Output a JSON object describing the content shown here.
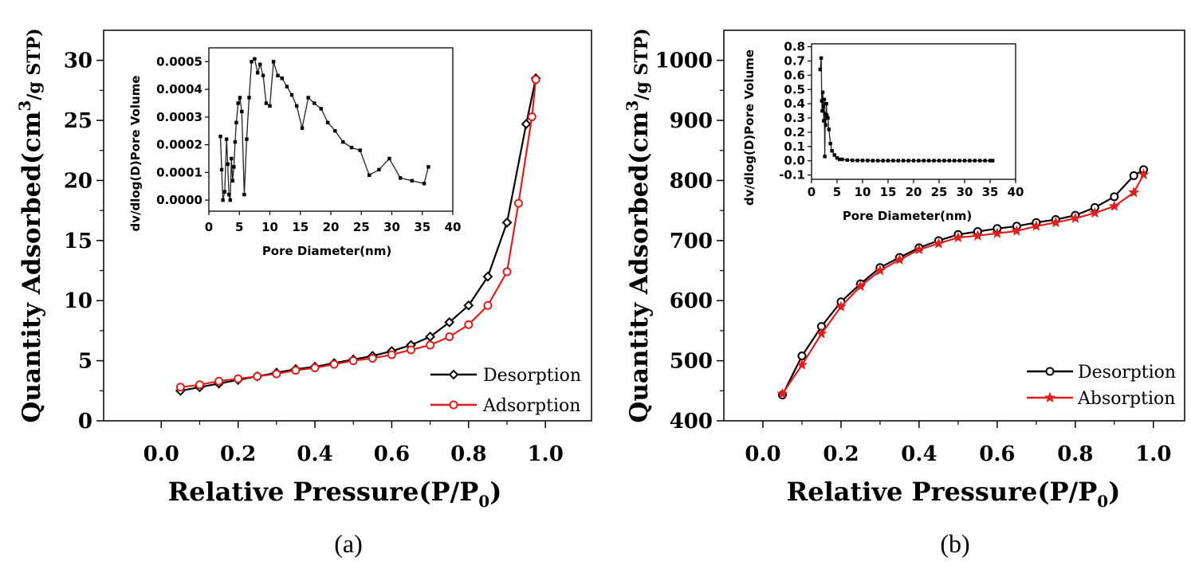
{
  "chart_data": [
    {
      "type": "line",
      "panel_label": "(a)",
      "xlabel": "Relative Pressure(P/P",
      "xlabel_sub": "0",
      "xlabel_close": ")",
      "ylabel": "Quantity Adsorbed(cm",
      "ylabel_sup": "3",
      "ylabel_unit": "/g STP)",
      "xlim": [
        -0.15,
        1.12
      ],
      "ylim": [
        0,
        32.5
      ],
      "xticks": [
        0.0,
        0.2,
        0.4,
        0.6,
        0.8,
        1.0
      ],
      "xtick_labels": [
        "0.0",
        "0.2",
        "0.4",
        "0.6",
        "0.8",
        "1.0"
      ],
      "yticks": [
        0,
        5,
        10,
        15,
        20,
        25,
        30
      ],
      "ytick_labels": [
        "0",
        "5",
        "10",
        "15",
        "20",
        "25",
        "30"
      ],
      "legend_position": "bottom-right",
      "series": [
        {
          "name": "Desorption",
          "color": "#000000",
          "marker": "diamond",
          "x": [
            0.05,
            0.1,
            0.15,
            0.2,
            0.25,
            0.3,
            0.35,
            0.4,
            0.45,
            0.5,
            0.55,
            0.6,
            0.65,
            0.7,
            0.75,
            0.8,
            0.85,
            0.9,
            0.95,
            0.975
          ],
          "y": [
            2.5,
            2.8,
            3.1,
            3.4,
            3.7,
            4.0,
            4.3,
            4.5,
            4.8,
            5.1,
            5.4,
            5.8,
            6.3,
            7.0,
            8.2,
            9.6,
            12.0,
            16.5,
            24.7,
            28.5
          ]
        },
        {
          "name": "Adsorption",
          "color": "#dd1f1f",
          "marker": "circle",
          "x": [
            0.05,
            0.1,
            0.15,
            0.2,
            0.25,
            0.3,
            0.35,
            0.4,
            0.45,
            0.5,
            0.55,
            0.6,
            0.65,
            0.7,
            0.75,
            0.8,
            0.85,
            0.9,
            0.93,
            0.965,
            0.975
          ],
          "y": [
            2.8,
            3.0,
            3.3,
            3.5,
            3.7,
            3.9,
            4.2,
            4.4,
            4.7,
            5.0,
            5.2,
            5.5,
            5.9,
            6.3,
            7.0,
            8.0,
            9.6,
            12.4,
            18.1,
            25.3,
            28.4
          ]
        }
      ],
      "inset": {
        "type": "line",
        "xlabel": "Pore Diameter(nm)",
        "ylabel": "dv/dlog(D)Pore Volume",
        "xlim": [
          0,
          40
        ],
        "ylim": [
          -4e-05,
          0.00055
        ],
        "xticks": [
          0,
          5,
          10,
          15,
          20,
          25,
          30,
          35,
          40
        ],
        "xtick_labels": [
          "0",
          "5",
          "10",
          "15",
          "20",
          "25",
          "30",
          "35",
          "40"
        ],
        "yticks": [
          0.0,
          0.0001,
          0.0002,
          0.0003,
          0.0004,
          0.0005
        ],
        "ytick_labels": [
          "0.0000",
          "0.0001",
          "0.0002",
          "0.0003",
          "0.0004",
          "0.0005"
        ],
        "x": [
          1.9,
          2.1,
          2.3,
          2.6,
          2.9,
          3.1,
          3.3,
          3.5,
          3.7,
          3.9,
          4.1,
          4.3,
          4.5,
          4.8,
          5.1,
          5.4,
          5.8,
          6.2,
          6.6,
          7.0,
          7.5,
          8.0,
          8.4,
          8.9,
          9.4,
          10.0,
          10.6,
          11.3,
          12.0,
          12.8,
          13.6,
          14.4,
          15.3,
          16.3,
          17.3,
          18.4,
          19.5,
          20.7,
          22.0,
          23.4,
          24.8,
          26.3,
          27.9,
          29.6,
          31.4,
          33.3,
          35.3,
          36.0
        ],
        "y": [
          0.00023,
          0.00011,
          0.0,
          3e-05,
          0.00022,
          0.00013,
          2e-05,
          0.0,
          0.00015,
          7e-05,
          0.00012,
          0.00021,
          0.00028,
          0.00035,
          0.00037,
          0.00032,
          2e-05,
          0.00022,
          0.00037,
          0.0005,
          0.00051,
          0.00046,
          0.00049,
          0.00045,
          0.00035,
          0.00034,
          0.0005,
          0.00045,
          0.00044,
          0.00041,
          0.00038,
          0.00034,
          0.00026,
          0.00037,
          0.00035,
          0.00033,
          0.00028,
          0.00025,
          0.00021,
          0.00019,
          0.00018,
          9e-05,
          0.00011,
          0.00015,
          8e-05,
          7e-05,
          6e-05,
          0.00012
        ]
      }
    },
    {
      "type": "line",
      "panel_label": "(b)",
      "xlabel": "Relative Pressure(P/P",
      "xlabel_sub": "0",
      "xlabel_close": ")",
      "ylabel": "Quantity Adsorbed(cm",
      "ylabel_sup": "3",
      "ylabel_unit": "/g STP)",
      "xlim": [
        -0.1,
        1.08
      ],
      "ylim": [
        400,
        1050
      ],
      "xticks": [
        0.0,
        0.2,
        0.4,
        0.6,
        0.8,
        1.0
      ],
      "xtick_labels": [
        "0.0",
        "0.2",
        "0.4",
        "0.6",
        "0.8",
        "1.0"
      ],
      "yticks": [
        400,
        500,
        600,
        700,
        800,
        900,
        1000
      ],
      "ytick_labels": [
        "400",
        "500",
        "600",
        "700",
        "800",
        "900",
        "1000"
      ],
      "legend_position": "bottom-right",
      "series": [
        {
          "name": "Desorption",
          "color": "#000000",
          "marker": "circle",
          "x": [
            0.05,
            0.1,
            0.15,
            0.2,
            0.25,
            0.3,
            0.35,
            0.4,
            0.45,
            0.5,
            0.55,
            0.6,
            0.65,
            0.7,
            0.75,
            0.8,
            0.85,
            0.9,
            0.95,
            0.975
          ],
          "y": [
            443,
            508,
            557,
            598,
            628,
            655,
            672,
            688,
            700,
            710,
            715,
            720,
            724,
            730,
            735,
            742,
            755,
            773,
            808,
            818
          ]
        },
        {
          "name": "Absorption",
          "color": "#dd1f1f",
          "marker": "star",
          "x": [
            0.05,
            0.1,
            0.15,
            0.2,
            0.25,
            0.3,
            0.35,
            0.4,
            0.45,
            0.5,
            0.55,
            0.6,
            0.65,
            0.7,
            0.75,
            0.8,
            0.85,
            0.9,
            0.95,
            0.975
          ],
          "y": [
            445,
            493,
            545,
            590,
            624,
            650,
            668,
            685,
            695,
            705,
            708,
            712,
            716,
            724,
            730,
            737,
            746,
            757,
            780,
            810
          ]
        }
      ],
      "inset": {
        "type": "line",
        "xlabel": "Pore Diameter(nm)",
        "ylabel": "dv/dlog(D)Pore Volume",
        "xlim": [
          0,
          40
        ],
        "ylim": [
          -0.13,
          0.82
        ],
        "xticks": [
          0,
          5,
          10,
          15,
          20,
          25,
          30,
          35,
          40
        ],
        "xtick_labels": [
          "0",
          "5",
          "10",
          "15",
          "20",
          "25",
          "30",
          "35",
          "40"
        ],
        "yticks": [
          -0.1,
          0.0,
          0.1,
          0.2,
          0.3,
          0.4,
          0.5,
          0.6,
          0.7,
          0.8
        ],
        "ytick_labels": [
          "-0.1",
          "0.0",
          "0.1",
          "0.2",
          "0.3",
          "0.4",
          "0.5",
          "0.6",
          "0.7",
          "0.8"
        ],
        "x": [
          1.7,
          1.9,
          2.0,
          2.1,
          2.2,
          2.3,
          2.4,
          2.5,
          2.6,
          2.7,
          2.8,
          2.9,
          3.0,
          3.2,
          3.4,
          3.7,
          4.0,
          4.5,
          5.0,
          5.5,
          6.0,
          7.0,
          8.0,
          9.0,
          10.0,
          11.0,
          12.0,
          13.0,
          14.0,
          15.0,
          16.0,
          17.0,
          18.0,
          19.0,
          20.0,
          21.0,
          22.0,
          23.0,
          24.0,
          25.0,
          26.0,
          27.0,
          28.0,
          29.0,
          30.0,
          31.0,
          32.0,
          33.0,
          34.0,
          35.0,
          35.5
        ],
        "y": [
          0.64,
          0.72,
          0.42,
          0.35,
          0.48,
          0.38,
          0.28,
          0.43,
          0.03,
          0.33,
          0.25,
          0.4,
          0.32,
          0.3,
          0.22,
          0.12,
          0.07,
          0.04,
          0.02,
          0.01,
          0.01,
          0.005,
          0.003,
          0.002,
          0.002,
          0.002,
          0.001,
          0.001,
          0.001,
          0.001,
          0.001,
          0.001,
          0.001,
          0.001,
          0.001,
          0.001,
          0.001,
          0.001,
          0.001,
          0.001,
          0.001,
          0.001,
          0.001,
          0.001,
          0.001,
          0.001,
          0.001,
          0.001,
          0.001,
          0.001,
          0.001
        ]
      }
    }
  ]
}
